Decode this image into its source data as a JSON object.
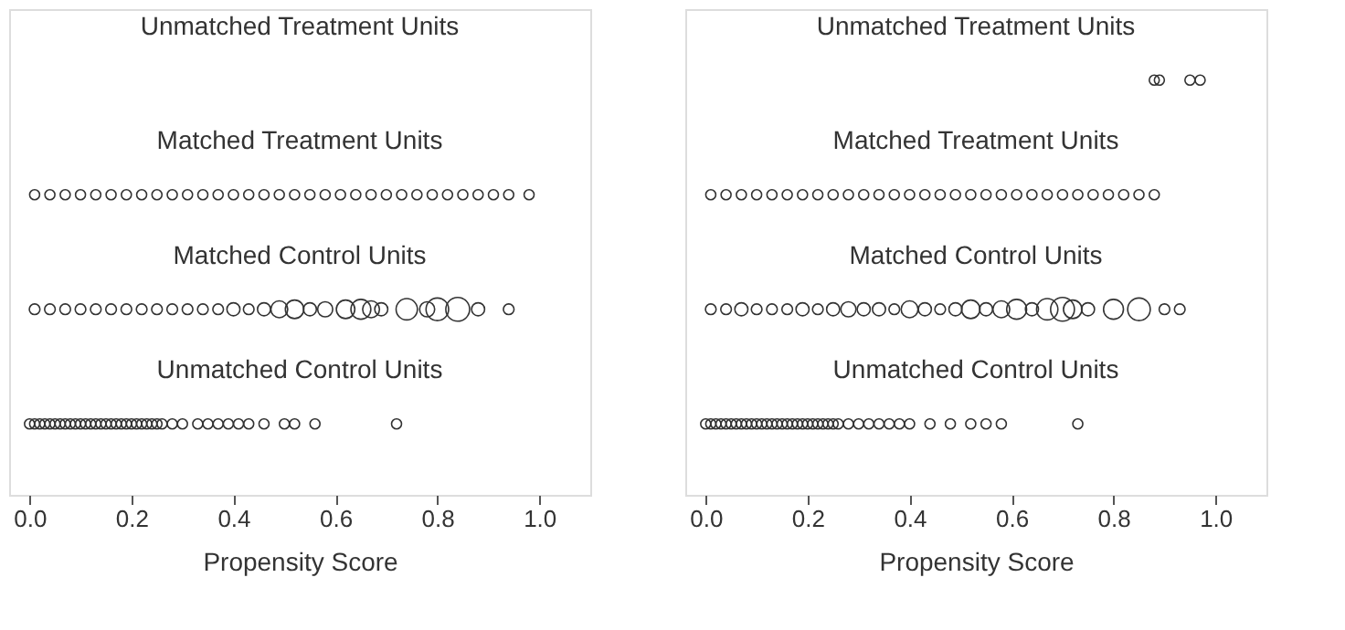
{
  "chart_data": [
    {
      "type": "scatter",
      "orientation": "horizontal",
      "xlabel": "Propensity Score",
      "xlim": [
        -0.04,
        1.1
      ],
      "xticks": [
        {
          "value": 0,
          "label": "0.0"
        },
        {
          "value": 0.2,
          "label": "0.2"
        },
        {
          "value": 0.4,
          "label": "0.4"
        },
        {
          "value": 0.6,
          "label": "0.6"
        },
        {
          "value": 0.8,
          "label": "0.8"
        },
        {
          "value": 1,
          "label": "1.0"
        }
      ],
      "grid": false,
      "marker": "circle",
      "categories": [
        "Unmatched Treatment Units",
        "Matched Treatment Units",
        "Matched Control Units",
        "Unmatched Control Units"
      ],
      "series": [
        {
          "color": "#333333",
          "x": [
            "Unmatched Control Units",
            "Unmatched Control Units",
            "Unmatched Control Units",
            "Unmatched Control Units",
            "Unmatched Control Units",
            "Unmatched Control Units",
            "Unmatched Control Units",
            "Unmatched Control Units",
            "Unmatched Control Units",
            "Unmatched Control Units",
            "Unmatched Control Units",
            "Unmatched Control Units",
            "Unmatched Control Units",
            "Unmatched Control Units",
            "Unmatched Control Units",
            "Unmatched Control Units",
            "Unmatched Control Units",
            "Unmatched Control Units",
            "Unmatched Control Units",
            "Unmatched Control Units",
            "Unmatched Control Units",
            "Unmatched Control Units",
            "Unmatched Control Units",
            "Unmatched Control Units",
            "Unmatched Control Units",
            "Unmatched Control Units",
            "Unmatched Control Units",
            "Unmatched Control Units",
            "Unmatched Control Units",
            "Unmatched Control Units",
            "Unmatched Control Units",
            "Unmatched Control Units",
            "Unmatched Control Units",
            "Unmatched Control Units",
            "Unmatched Control Units",
            "Unmatched Control Units",
            "Unmatched Control Units",
            "Unmatched Control Units",
            "Unmatched Control Units",
            "Unmatched Control Units"
          ],
          "values": [
            0.0,
            0.01,
            0.02,
            0.03,
            0.04,
            0.05,
            0.06,
            0.07,
            0.08,
            0.09,
            0.1,
            0.11,
            0.12,
            0.13,
            0.14,
            0.15,
            0.16,
            0.17,
            0.18,
            0.19,
            0.2,
            0.21,
            0.22,
            0.23,
            0.24,
            0.25,
            0.26,
            0.28,
            0.3,
            0.33,
            0.35,
            0.37,
            0.39,
            0.41,
            0.43,
            0.46,
            0.5,
            0.52,
            0.56,
            0.72
          ]
        },
        {
          "type": "bubble",
          "color": "#333333",
          "x": [
            "Matched Control Units",
            "Matched Control Units",
            "Matched Control Units",
            "Matched Control Units",
            "Matched Control Units",
            "Matched Control Units",
            "Matched Control Units",
            "Matched Control Units",
            "Matched Control Units",
            "Matched Control Units",
            "Matched Control Units",
            "Matched Control Units",
            "Matched Control Units",
            "Matched Control Units",
            "Matched Control Units",
            "Matched Control Units",
            "Matched Control Units",
            "Matched Control Units",
            "Matched Control Units",
            "Matched Control Units",
            "Matched Control Units",
            "Matched Control Units",
            "Matched Control Units",
            "Matched Control Units",
            "Matched Control Units",
            "Matched Control Units",
            "Matched Control Units",
            "Matched Control Units",
            "Matched Control Units",
            "Matched Control Units"
          ],
          "values": [
            0.01,
            0.04,
            0.07,
            0.1,
            0.13,
            0.16,
            0.19,
            0.22,
            0.25,
            0.28,
            0.31,
            0.34,
            0.37,
            0.4,
            0.43,
            0.46,
            0.49,
            0.52,
            0.55,
            0.58,
            0.62,
            0.65,
            0.67,
            0.69,
            0.74,
            0.78,
            0.8,
            0.84,
            0.88,
            0.94
          ],
          "sizes": [
            0.2,
            0.2,
            0.2,
            0.2,
            0.2,
            0.2,
            0.2,
            0.2,
            0.2,
            0.2,
            0.2,
            0.2,
            0.2,
            0.3,
            0.2,
            0.3,
            0.5,
            0.6,
            0.3,
            0.4,
            0.6,
            0.7,
            0.5,
            0.3,
            0.8,
            0.4,
            0.9,
            1.0,
            0.3,
            0.2
          ]
        },
        {
          "color": "#333333",
          "x": [
            "Matched Treatment Units",
            "Matched Treatment Units",
            "Matched Treatment Units",
            "Matched Treatment Units",
            "Matched Treatment Units",
            "Matched Treatment Units",
            "Matched Treatment Units",
            "Matched Treatment Units",
            "Matched Treatment Units",
            "Matched Treatment Units",
            "Matched Treatment Units",
            "Matched Treatment Units",
            "Matched Treatment Units",
            "Matched Treatment Units",
            "Matched Treatment Units",
            "Matched Treatment Units",
            "Matched Treatment Units",
            "Matched Treatment Units",
            "Matched Treatment Units",
            "Matched Treatment Units",
            "Matched Treatment Units",
            "Matched Treatment Units",
            "Matched Treatment Units",
            "Matched Treatment Units",
            "Matched Treatment Units",
            "Matched Treatment Units",
            "Matched Treatment Units",
            "Matched Treatment Units",
            "Matched Treatment Units",
            "Matched Treatment Units",
            "Matched Treatment Units",
            "Matched Treatment Units",
            "Matched Treatment Units"
          ],
          "values": [
            0.01,
            0.04,
            0.07,
            0.1,
            0.13,
            0.16,
            0.19,
            0.22,
            0.25,
            0.28,
            0.31,
            0.34,
            0.37,
            0.4,
            0.43,
            0.46,
            0.49,
            0.52,
            0.55,
            0.58,
            0.61,
            0.64,
            0.67,
            0.7,
            0.73,
            0.76,
            0.79,
            0.82,
            0.85,
            0.88,
            0.91,
            0.94,
            0.98
          ]
        }
      ]
    },
    {
      "type": "scatter",
      "orientation": "horizontal",
      "xlabel": "Propensity Score",
      "xlim": [
        -0.04,
        1.1
      ],
      "xticks": [
        {
          "value": 0,
          "label": "0.0"
        },
        {
          "value": 0.2,
          "label": "0.2"
        },
        {
          "value": 0.4,
          "label": "0.4"
        },
        {
          "value": 0.6,
          "label": "0.6"
        },
        {
          "value": 0.8,
          "label": "0.8"
        },
        {
          "value": 1,
          "label": "1.0"
        }
      ],
      "grid": false,
      "marker": "circle",
      "categories": [
        "Unmatched Treatment Units",
        "Matched Treatment Units",
        "Matched Control Units",
        "Unmatched Control Units"
      ],
      "series": [
        {
          "color": "#333333",
          "x": [
            "Unmatched Control Units",
            "Unmatched Control Units",
            "Unmatched Control Units",
            "Unmatched Control Units",
            "Unmatched Control Units",
            "Unmatched Control Units",
            "Unmatched Control Units",
            "Unmatched Control Units",
            "Unmatched Control Units",
            "Unmatched Control Units",
            "Unmatched Control Units",
            "Unmatched Control Units",
            "Unmatched Control Units",
            "Unmatched Control Units",
            "Unmatched Control Units",
            "Unmatched Control Units",
            "Unmatched Control Units",
            "Unmatched Control Units",
            "Unmatched Control Units",
            "Unmatched Control Units",
            "Unmatched Control Units",
            "Unmatched Control Units",
            "Unmatched Control Units",
            "Unmatched Control Units",
            "Unmatched Control Units",
            "Unmatched Control Units",
            "Unmatched Control Units",
            "Unmatched Control Units",
            "Unmatched Control Units",
            "Unmatched Control Units",
            "Unmatched Control Units",
            "Unmatched Control Units",
            "Unmatched Control Units",
            "Unmatched Control Units",
            "Unmatched Control Units",
            "Unmatched Control Units",
            "Unmatched Control Units",
            "Unmatched Control Units",
            "Unmatched Control Units",
            "Unmatched Control Units"
          ],
          "values": [
            0.0,
            0.01,
            0.02,
            0.03,
            0.04,
            0.05,
            0.06,
            0.07,
            0.08,
            0.09,
            0.1,
            0.11,
            0.12,
            0.13,
            0.14,
            0.15,
            0.16,
            0.17,
            0.18,
            0.19,
            0.2,
            0.21,
            0.22,
            0.23,
            0.24,
            0.25,
            0.26,
            0.28,
            0.3,
            0.32,
            0.34,
            0.36,
            0.38,
            0.4,
            0.44,
            0.48,
            0.52,
            0.55,
            0.58,
            0.73
          ]
        },
        {
          "type": "bubble",
          "color": "#333333",
          "x": [
            "Matched Control Units",
            "Matched Control Units",
            "Matched Control Units",
            "Matched Control Units",
            "Matched Control Units",
            "Matched Control Units",
            "Matched Control Units",
            "Matched Control Units",
            "Matched Control Units",
            "Matched Control Units",
            "Matched Control Units",
            "Matched Control Units",
            "Matched Control Units",
            "Matched Control Units",
            "Matched Control Units",
            "Matched Control Units",
            "Matched Control Units",
            "Matched Control Units",
            "Matched Control Units",
            "Matched Control Units",
            "Matched Control Units",
            "Matched Control Units",
            "Matched Control Units",
            "Matched Control Units",
            "Matched Control Units",
            "Matched Control Units",
            "Matched Control Units",
            "Matched Control Units",
            "Matched Control Units",
            "Matched Control Units"
          ],
          "values": [
            0.01,
            0.04,
            0.07,
            0.1,
            0.13,
            0.16,
            0.19,
            0.22,
            0.25,
            0.28,
            0.31,
            0.34,
            0.37,
            0.4,
            0.43,
            0.46,
            0.49,
            0.52,
            0.55,
            0.58,
            0.61,
            0.64,
            0.67,
            0.7,
            0.72,
            0.75,
            0.8,
            0.85,
            0.9,
            0.93
          ],
          "sizes": [
            0.2,
            0.2,
            0.3,
            0.2,
            0.2,
            0.2,
            0.3,
            0.2,
            0.3,
            0.4,
            0.3,
            0.3,
            0.2,
            0.5,
            0.3,
            0.2,
            0.3,
            0.6,
            0.3,
            0.5,
            0.7,
            0.3,
            0.8,
            1.0,
            0.6,
            0.3,
            0.7,
            0.9,
            0.2,
            0.2
          ]
        },
        {
          "color": "#333333",
          "x": [
            "Matched Treatment Units",
            "Matched Treatment Units",
            "Matched Treatment Units",
            "Matched Treatment Units",
            "Matched Treatment Units",
            "Matched Treatment Units",
            "Matched Treatment Units",
            "Matched Treatment Units",
            "Matched Treatment Units",
            "Matched Treatment Units",
            "Matched Treatment Units",
            "Matched Treatment Units",
            "Matched Treatment Units",
            "Matched Treatment Units",
            "Matched Treatment Units",
            "Matched Treatment Units",
            "Matched Treatment Units",
            "Matched Treatment Units",
            "Matched Treatment Units",
            "Matched Treatment Units",
            "Matched Treatment Units",
            "Matched Treatment Units",
            "Matched Treatment Units",
            "Matched Treatment Units",
            "Matched Treatment Units",
            "Matched Treatment Units",
            "Matched Treatment Units",
            "Matched Treatment Units",
            "Matched Treatment Units",
            "Matched Treatment Units"
          ],
          "values": [
            0.01,
            0.04,
            0.07,
            0.1,
            0.13,
            0.16,
            0.19,
            0.22,
            0.25,
            0.28,
            0.31,
            0.34,
            0.37,
            0.4,
            0.43,
            0.46,
            0.49,
            0.52,
            0.55,
            0.58,
            0.61,
            0.64,
            0.67,
            0.7,
            0.73,
            0.76,
            0.79,
            0.82,
            0.85,
            0.88
          ]
        },
        {
          "color": "#333333",
          "x": [
            "Unmatched Treatment Units",
            "Unmatched Treatment Units",
            "Unmatched Treatment Units",
            "Unmatched Treatment Units"
          ],
          "values": [
            0.88,
            0.89,
            0.95,
            0.97
          ]
        }
      ]
    }
  ]
}
